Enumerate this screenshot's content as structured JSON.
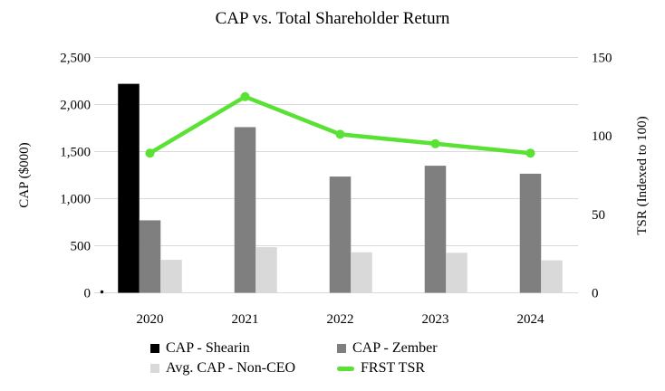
{
  "title": "CAP vs. Total Shareholder Return",
  "left_axis": {
    "title": "CAP ($000)",
    "tick_labels": [
      "2,500",
      "2,000",
      "1,500",
      "1,000",
      "500",
      "0"
    ],
    "tick_values": [
      2500,
      2000,
      1500,
      1000,
      500,
      0
    ]
  },
  "right_axis": {
    "title": "TSR (Indexed to 100)",
    "tick_labels": [
      "150",
      "100",
      "50",
      "0"
    ],
    "tick_values": [
      150,
      100,
      50,
      0
    ]
  },
  "chart_data": {
    "type": "bar+line",
    "title": "CAP vs. Total Shareholder Return",
    "categories": [
      "2020",
      "2021",
      "2022",
      "2023",
      "2024"
    ],
    "series": [
      {
        "name": "CAP - Shearin",
        "type": "bar",
        "axis": "left",
        "color": "#000000",
        "values": [
          2220,
          0,
          0,
          0,
          0
        ]
      },
      {
        "name": "CAP - Zember",
        "type": "bar",
        "axis": "left",
        "color": "#7f7f7f",
        "values": [
          770,
          1760,
          1235,
          1350,
          1265
        ]
      },
      {
        "name": "Avg. CAP - Non-CEO",
        "type": "bar",
        "axis": "left",
        "color": "#d9d9d9",
        "values": [
          350,
          485,
          430,
          425,
          345
        ]
      },
      {
        "name": "FRST TSR",
        "type": "line",
        "axis": "right",
        "color": "#59e234",
        "values": [
          89,
          125,
          101,
          95,
          89
        ]
      }
    ],
    "ylabel_left": "CAP ($000)",
    "ylabel_right": "TSR (Indexed to 100)",
    "ylim_left": [
      0,
      2500
    ],
    "ylim_right": [
      0,
      150
    ],
    "grid": true,
    "legend_position": "bottom"
  },
  "colors": {
    "grid": "#d9d9d9",
    "text": "#000000",
    "accent_green": "#59e234"
  }
}
